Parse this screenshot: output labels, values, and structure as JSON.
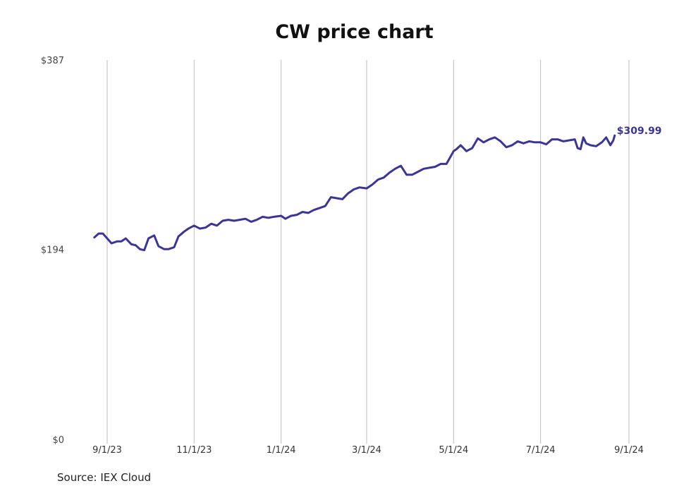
{
  "chart_data": {
    "type": "line",
    "title": "CW price chart",
    "source": "Source: IEX Cloud",
    "y_ticks": [
      {
        "value": 0,
        "label": "$0"
      },
      {
        "value": 194,
        "label": "$194"
      },
      {
        "value": 387,
        "label": "$387"
      }
    ],
    "ylim": [
      0,
      387
    ],
    "x_ticks": [
      "9/1/23",
      "11/1/23",
      "1/1/24",
      "3/1/24",
      "5/1/24",
      "7/1/24",
      "9/1/24"
    ],
    "grid": "vertical at x ticks",
    "last_value_label": "$309.99",
    "series": [
      {
        "color": "#3b3596",
        "x": [
          "2023-08-23",
          "2023-08-26",
          "2023-08-29",
          "2023-09-01",
          "2023-09-04",
          "2023-09-08",
          "2023-09-11",
          "2023-09-14",
          "2023-09-18",
          "2023-09-21",
          "2023-09-24",
          "2023-09-27",
          "2023-09-30",
          "2023-10-04",
          "2023-10-07",
          "2023-10-11",
          "2023-10-14",
          "2023-10-18",
          "2023-10-21",
          "2023-10-25",
          "2023-10-28",
          "2023-11-01",
          "2023-11-05",
          "2023-11-09",
          "2023-11-13",
          "2023-11-17",
          "2023-11-21",
          "2023-11-25",
          "2023-11-29",
          "2023-12-03",
          "2023-12-07",
          "2023-12-11",
          "2023-12-15",
          "2023-12-19",
          "2023-12-23",
          "2023-12-27",
          "2024-01-01",
          "2024-01-04",
          "2024-01-08",
          "2024-01-12",
          "2024-01-16",
          "2024-01-20",
          "2024-01-24",
          "2024-01-28",
          "2024-02-01",
          "2024-02-05",
          "2024-02-09",
          "2024-02-13",
          "2024-02-17",
          "2024-02-21",
          "2024-02-25",
          "2024-03-01",
          "2024-03-05",
          "2024-03-09",
          "2024-03-13",
          "2024-03-17",
          "2024-03-21",
          "2024-03-25",
          "2024-03-29",
          "2024-04-02",
          "2024-04-06",
          "2024-04-10",
          "2024-04-14",
          "2024-04-18",
          "2024-04-22",
          "2024-04-26",
          "2024-05-01",
          "2024-05-03",
          "2024-05-06",
          "2024-05-10",
          "2024-05-14",
          "2024-05-18",
          "2024-05-22",
          "2024-05-26",
          "2024-05-30",
          "2024-06-03",
          "2024-06-07",
          "2024-06-11",
          "2024-06-15",
          "2024-06-19",
          "2024-06-23",
          "2024-06-27",
          "2024-07-01",
          "2024-07-05",
          "2024-07-09",
          "2024-07-13",
          "2024-07-17",
          "2024-07-21",
          "2024-07-25",
          "2024-07-27",
          "2024-07-29",
          "2024-07-31",
          "2024-08-02",
          "2024-08-05",
          "2024-08-09",
          "2024-08-13",
          "2024-08-16",
          "2024-08-19",
          "2024-08-21",
          "2024-08-22"
        ],
        "y": [
          206,
          210,
          210,
          205,
          200,
          202,
          202,
          205,
          199,
          198,
          194,
          193,
          205,
          208,
          197,
          194,
          194,
          196,
          207,
          212,
          215,
          218,
          215,
          216,
          220,
          218,
          223,
          224,
          223,
          224,
          225,
          222,
          224,
          227,
          226,
          227,
          228,
          225,
          228,
          229,
          232,
          231,
          234,
          236,
          238,
          247,
          246,
          245,
          251,
          255,
          257,
          256,
          260,
          265,
          267,
          272,
          276,
          279,
          270,
          270,
          273,
          276,
          277,
          278,
          281,
          281,
          294,
          296,
          300,
          294,
          297,
          307,
          303,
          306,
          308,
          304,
          298,
          300,
          304,
          302,
          304,
          303,
          303,
          301,
          306,
          306,
          304,
          305,
          306,
          297,
          296,
          308,
          302,
          300,
          299,
          303,
          308,
          300,
          305,
          309.99
        ]
      }
    ]
  }
}
